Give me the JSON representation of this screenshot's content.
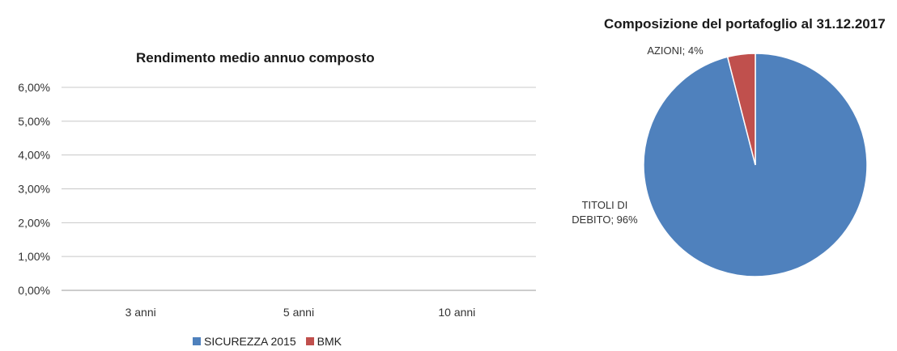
{
  "chart_data": [
    {
      "type": "bar",
      "title": "Rendimento medio annuo composto",
      "categories": [
        "3 anni",
        "5 anni",
        "10 anni"
      ],
      "series": [
        {
          "name": "SICUREZZA 2015",
          "color": "#4f81bd",
          "values": [
            null,
            null,
            null
          ]
        },
        {
          "name": "BMK",
          "color": "#c0504d",
          "values": [
            null,
            null,
            null
          ]
        }
      ],
      "ylim": [
        0,
        6
      ],
      "yticks": [
        "0,00%",
        "1,00%",
        "2,00%",
        "3,00%",
        "4,00%",
        "5,00%",
        "6,00%"
      ],
      "grid": true,
      "legend": "bottom"
    },
    {
      "type": "pie",
      "title": "Composizione del portafoglio al 31.12.2017",
      "slices": [
        {
          "label": "TITOLI DI DEBITO",
          "value": 96,
          "display": "96%",
          "color": "#4f81bd"
        },
        {
          "label": "AZIONI",
          "value": 4,
          "display": "4%",
          "color": "#c0504d"
        }
      ]
    }
  ]
}
